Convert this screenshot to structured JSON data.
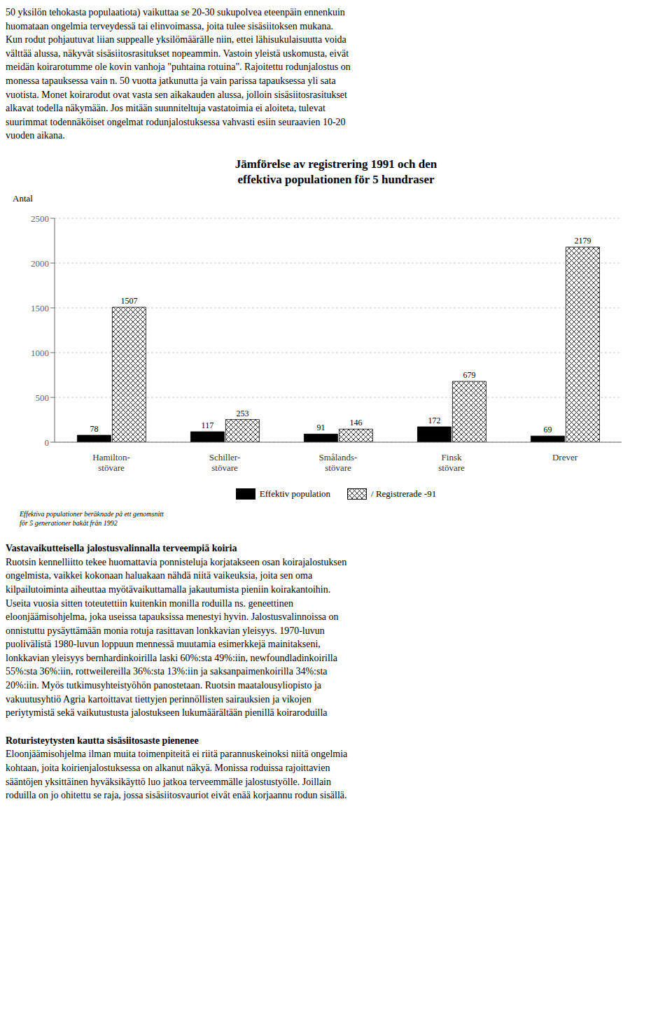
{
  "chart_data": {
    "type": "bar",
    "title": "Jämförelse av registrering 1991 och den\neffektiva populationen för 5 hundraser",
    "y_label": "Antal",
    "categories": [
      "Hamilton-\nstövare",
      "Schiller-\nstövare",
      "Smålands-\nstövare",
      "Finsk\nstövare",
      "Drever"
    ],
    "series": [
      {
        "name": "Effektiv population",
        "color": "#000000",
        "values": [
          78,
          117,
          91,
          172,
          69
        ]
      },
      {
        "name": "/ Registrerade -91",
        "color": "#ffffff",
        "values": [
          1507,
          253,
          146,
          679,
          2179
        ]
      }
    ],
    "ylim": [
      0,
      2500
    ],
    "yticks": [
      0,
      500,
      1000,
      1500,
      2000,
      2500
    ],
    "grid": true,
    "legend": "bottom",
    "data_labels": true,
    "intro": [
      "50 yksilön tehokasta populaatiota) vaikuttaa se 20-30 sukupolvea eteenpäin ennenkuin",
      "huomataan ongelmia terveydessä tai elinvoimassa, joita tulee sisäsiitoksen mukana.",
      "Kun rodut pohjautuvat liian suppealle yksilömäärälle niin, ettei lähisukulaisuutta voida",
      "välttää alussa, näkyvät sisäsiitosrasitukset nopeammin. Vastoin yleistä uskomusta, eivät",
      "meidän koirarotumme ole kovin vanhoja \"puhtaina rotuina\". Rajoitettu rodunjalostus on",
      "monessa tapauksessa vain n. 50 vuotta jatkunutta ja vain parissa tapauksessa yli sata",
      "vuotista. Monet koirarodut ovat vasta sen aikakauden alussa, jolloin sisäsiitosrasitukset",
      "alkavat todella näkymään. Jos mitään suunniteltuja vastatoimia ei aloiteta, tulevat",
      "suurimmat todennäköiset ongelmat rodunjalostuksessa vahvasti esiin seuraavien 10-20",
      "vuoden aikana."
    ],
    "footnote": [
      "Effektiva populationer beräknade på ett genomsnitt",
      "för 5 generationer bakåt från 1992"
    ],
    "sections": [
      {
        "title": "Vastavaikutteisella jalostusvalinnalla terveempiä koiria",
        "lines": [
          "Ruotsin kennelliitto tekee huomattavia ponnisteluja korjatakseen osan koirajalostuksen",
          "ongelmista, vaikkei kokonaan haluakaan nähdä niitä vaikeuksia, joita sen oma",
          "kilpailutoiminta aiheuttaa myötävaikuttamalla jakautumista pieniin koirakantoihin.",
          "Useita vuosia sitten toteutettiin kuitenkin monilla roduilla ns. geneettinen",
          "eloonjäämisohjelma, joka useissa tapauksissa menestyi hyvin. Jalostusvalinnoissa on",
          "onnistuttu pysäyttämään monia rotuja rasittavan lonkkavian yleisyys. 1970-luvun",
          "puolivälistä 1980-luvun loppuun mennessä muutamia esimerkkejä mainitakseni,",
          "lonkkavian yleisyys bernhardinkoirilla laski 60%:sta 49%:iin, newfoundladinkoirilla",
          "55%:sta 36%:iin, rottweilereilla 36%:sta 13%:iin ja saksanpaimenkoirilla 34%:sta",
          "20%:iin. Myös tutkimusyhteistyöhön panostetaan. Ruotsin maatalousyliopisto ja",
          "vakuutusyhtiö Agria kartoittavat tiettyjen perinnöllisten sairauksien ja vikojen",
          "periytymistä sekä vaikutustusta jalostukseen lukumäärältään pienillä koiraroduilla"
        ]
      },
      {
        "title": "Roturisteytysten kautta sisäsiitosaste pienenee",
        "lines": [
          "Eloonjäämisohjelma ilman muita toimenpiteitä ei riitä parannuskeinoksi niitä ongelmia",
          "kohtaan, joita koirienjalostuksessa on alkanut näkyä. Monissa roduissa rajoittavien",
          "sääntöjen yksittäinen hyväksikäyttö luo jatkoa terveemmälle jalostustyölle. Joillain",
          "roduilla on jo ohitettu se raja, jossa sisäsiitosvauriot eivät enää korjaannu rodun sisällä."
        ]
      }
    ]
  }
}
